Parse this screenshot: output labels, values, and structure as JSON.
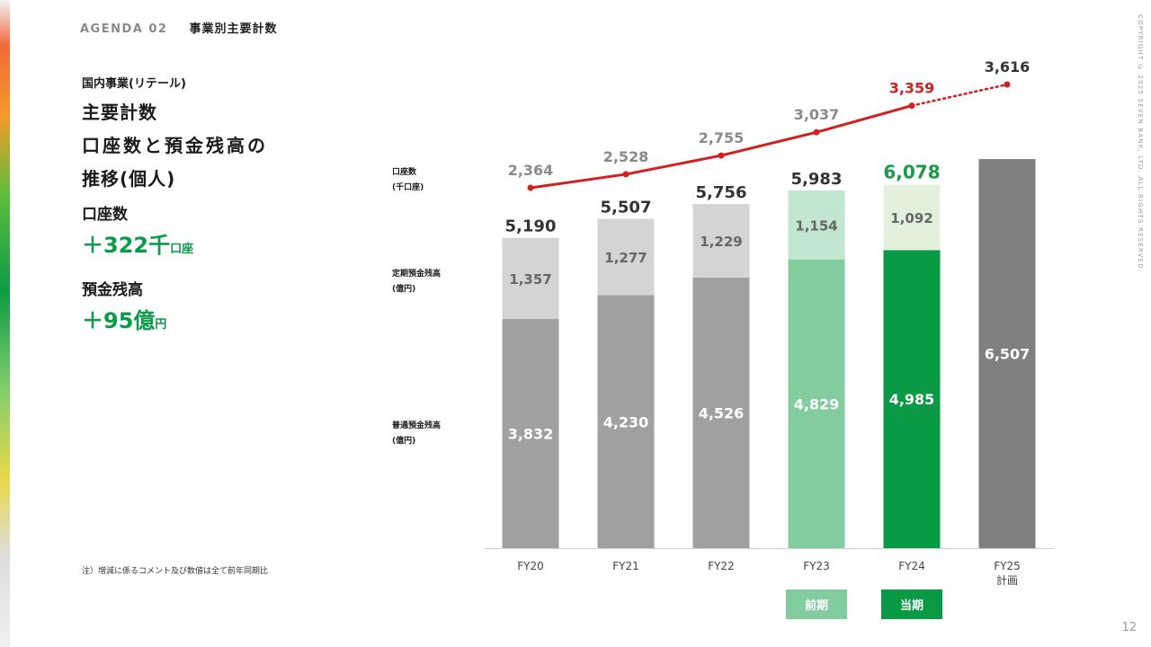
{
  "header": {
    "agenda": "AGENDA 02",
    "section": "事業別主要計数"
  },
  "copyright": "COPYRIGHT © 2025 SEVEN BANK, LTD. ALL RIGHTS RESERVED.",
  "page_number": "12",
  "left": {
    "subtitle": "国内事業(リテール)",
    "title_lines": [
      "主要計数",
      "口座数と預金残高の",
      "推移(個人)"
    ],
    "metrics": [
      {
        "label": "口座数",
        "value": "＋322千",
        "unit": "口座"
      },
      {
        "label": "預金残高",
        "value": "＋95億",
        "unit": "円"
      }
    ],
    "note": "注）増減に係るコメント及び数値は全て前年同期比"
  },
  "axis_labels": {
    "accounts": [
      "口座数",
      "(千口座)"
    ],
    "time_deposit": [
      "定期預金残高",
      "(億円)"
    ],
    "ordinary_deposit": [
      "普通預金残高",
      "(億円)"
    ]
  },
  "legend": {
    "previous": "前期",
    "current": "当期"
  },
  "colors": {
    "ordinary_gray": "#a0a0a0",
    "time_gray": "#d4d4d4",
    "fy23_ordinary": "#82cc9f",
    "fy23_time": "#c2e6cf",
    "fy24_ordinary": "#0a9a46",
    "fy24_time": "#e2f0dc",
    "fy25_plan": "#808080",
    "accounts_line": "#d02020",
    "total_current": "#1a9a4a"
  },
  "chart_data": {
    "type": "bar",
    "stacked": true,
    "categories": [
      "FY20",
      "FY21",
      "FY22",
      "FY23",
      "FY24",
      "FY25"
    ],
    "category_sublabels": [
      "",
      "",
      "",
      "",
      "",
      "計画"
    ],
    "series": [
      {
        "name": "普通預金残高",
        "values": [
          3832,
          4230,
          4526,
          4829,
          4985,
          null
        ]
      },
      {
        "name": "定期預金残高",
        "values": [
          1357,
          1277,
          1229,
          1154,
          1092,
          null
        ]
      }
    ],
    "plan_total": {
      "category": "FY25",
      "value": 6507
    },
    "totals": [
      5190,
      5507,
      5756,
      5983,
      6078,
      null
    ],
    "line": {
      "name": "口座数",
      "values": [
        2364,
        2528,
        2755,
        3037,
        3359,
        3616
      ],
      "last_segment": "dotted"
    },
    "ylim": [
      0,
      6507
    ]
  }
}
